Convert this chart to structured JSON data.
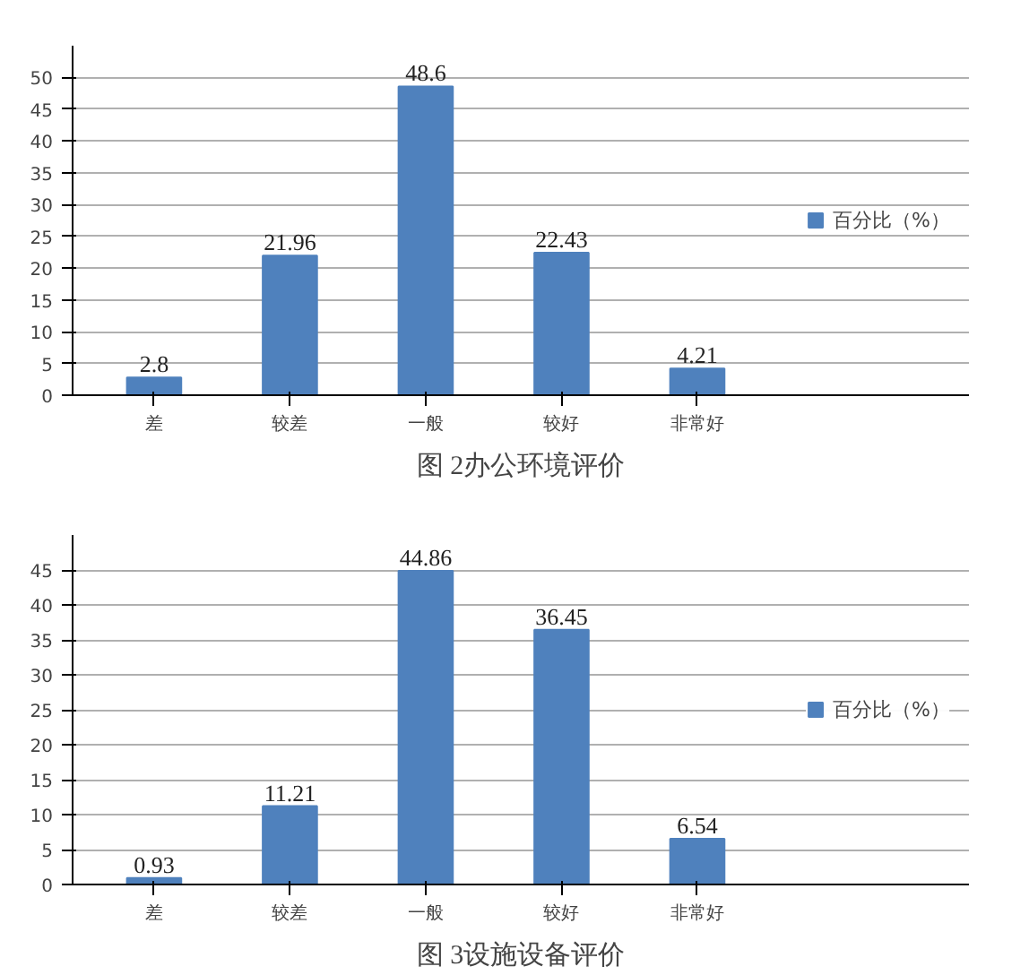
{
  "chart_data": [
    {
      "type": "bar",
      "title": "图 2办公环境评价",
      "categories": [
        "差",
        "较差",
        "一般",
        "较好",
        "非常好"
      ],
      "series": [
        {
          "name": "百分比（%）",
          "color": "#4f81bd",
          "values": [
            2.8,
            21.96,
            48.6,
            22.43,
            4.21
          ]
        }
      ],
      "ylim": [
        0,
        55
      ],
      "yticks": [
        0,
        5,
        10,
        15,
        20,
        25,
        30,
        35,
        40,
        45,
        50
      ],
      "grid": "y",
      "legend": "right",
      "data_labels": true
    },
    {
      "type": "bar",
      "title": "图 3设施设备评价",
      "categories": [
        "差",
        "较差",
        "一般",
        "较好",
        "非常好"
      ],
      "series": [
        {
          "name": "百分比（%）",
          "color": "#4f81bd",
          "values": [
            0.93,
            11.21,
            44.86,
            36.45,
            6.54
          ]
        }
      ],
      "ylim": [
        0,
        50
      ],
      "yticks": [
        0,
        5,
        10,
        15,
        20,
        25,
        30,
        35,
        40,
        45
      ],
      "grid": "y",
      "legend": "right",
      "data_labels": true
    }
  ]
}
